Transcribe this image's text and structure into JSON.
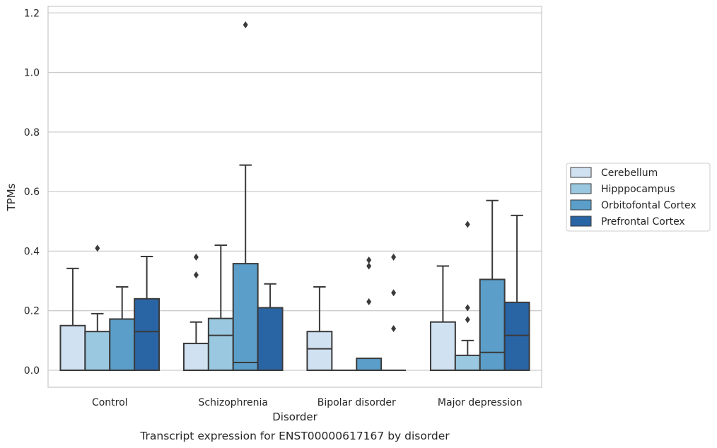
{
  "chart_data": {
    "type": "box",
    "caption": "Transcript expression for ENST00000617167 by disorder",
    "xlabel": "Disorder",
    "ylabel": "TPMs",
    "ylim": [
      -0.057,
      1.222
    ],
    "yticks": [
      "0.0",
      "0.2",
      "0.4",
      "0.6",
      "0.8",
      "1.0",
      "1.2"
    ],
    "grid": "horizontal",
    "legend_position": "right",
    "categories": [
      "Control",
      "Schizophrenia",
      "Bipolar disorder",
      "Major depression"
    ],
    "series": [
      {
        "name": "Cerebellum",
        "color": "#d0e1f2",
        "boxes": [
          {
            "q1": 0.0,
            "median": 0.0,
            "q3": 0.15,
            "whisker_low": 0.0,
            "whisker_high": 0.342,
            "outliers": []
          },
          {
            "q1": 0.0,
            "median": 0.0,
            "q3": 0.09,
            "whisker_low": 0.0,
            "whisker_high": 0.162,
            "outliers": [
              0.32,
              0.38
            ]
          },
          {
            "q1": 0.0,
            "median": 0.072,
            "q3": 0.13,
            "whisker_low": 0.0,
            "whisker_high": 0.28,
            "outliers": []
          },
          {
            "q1": 0.0,
            "median": 0.0,
            "q3": 0.162,
            "whisker_low": 0.0,
            "whisker_high": 0.35,
            "outliers": []
          }
        ]
      },
      {
        "name": "Hipppocampus",
        "color": "#9ac8e0",
        "boxes": [
          {
            "q1": 0.0,
            "median": 0.0,
            "q3": 0.13,
            "whisker_low": 0.0,
            "whisker_high": 0.19,
            "outliers": [
              0.41
            ]
          },
          {
            "q1": 0.0,
            "median": 0.117,
            "q3": 0.174,
            "whisker_low": 0.0,
            "whisker_high": 0.42,
            "outliers": []
          },
          {
            "q1": 0.0,
            "median": 0.0,
            "q3": 0.0,
            "whisker_low": 0.0,
            "whisker_high": 0.0,
            "outliers": []
          },
          {
            "q1": 0.0,
            "median": 0.0,
            "q3": 0.05,
            "whisker_low": 0.0,
            "whisker_high": 0.1,
            "outliers": [
              0.17,
              0.21,
              0.49
            ]
          }
        ]
      },
      {
        "name": "Orbitofontal Cortex",
        "color": "#5a9ec9",
        "boxes": [
          {
            "q1": 0.0,
            "median": 0.0,
            "q3": 0.172,
            "whisker_low": 0.0,
            "whisker_high": 0.28,
            "outliers": []
          },
          {
            "q1": 0.0,
            "median": 0.026,
            "q3": 0.358,
            "whisker_low": 0.0,
            "whisker_high": 0.689,
            "outliers": [
              1.16
            ]
          },
          {
            "q1": 0.0,
            "median": 0.0,
            "q3": 0.04,
            "whisker_low": 0.0,
            "whisker_high": 0.04,
            "outliers": [
              0.23,
              0.35,
              0.37
            ]
          },
          {
            "q1": 0.0,
            "median": 0.06,
            "q3": 0.305,
            "whisker_low": 0.0,
            "whisker_high": 0.57,
            "outliers": []
          }
        ]
      },
      {
        "name": "Prefrontal Cortex",
        "color": "#2964a5",
        "boxes": [
          {
            "q1": 0.0,
            "median": 0.13,
            "q3": 0.24,
            "whisker_low": 0.0,
            "whisker_high": 0.382,
            "outliers": []
          },
          {
            "q1": 0.0,
            "median": 0.0,
            "q3": 0.21,
            "whisker_low": 0.0,
            "whisker_high": 0.29,
            "outliers": []
          },
          {
            "q1": 0.0,
            "median": 0.0,
            "q3": 0.0,
            "whisker_low": 0.0,
            "whisker_high": 0.0,
            "outliers": [
              0.14,
              0.26,
              0.38
            ]
          },
          {
            "q1": 0.0,
            "median": 0.117,
            "q3": 0.228,
            "whisker_low": 0.0,
            "whisker_high": 0.52,
            "outliers": []
          }
        ]
      }
    ]
  }
}
